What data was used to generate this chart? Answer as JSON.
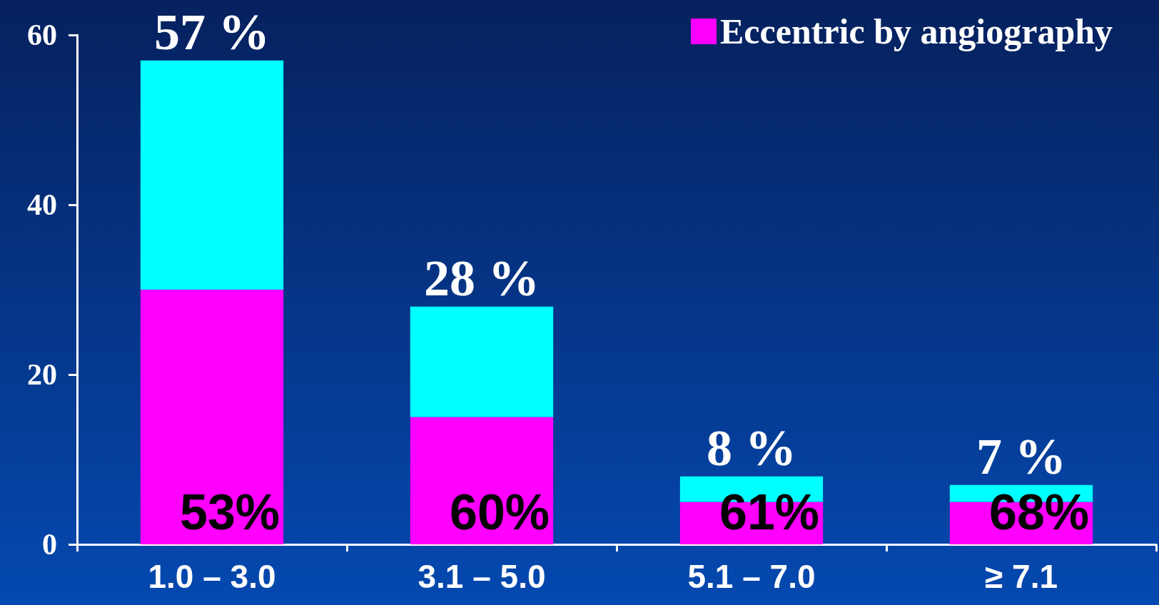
{
  "chart_data": {
    "type": "bar",
    "stacked": true,
    "categories": [
      "1.0 – 3.0",
      "3.1 – 5.0",
      "5.1 – 7.0",
      "≥ 7.1"
    ],
    "series": [
      {
        "name": "Eccentric by angiography",
        "color": "#ff00ff",
        "values": [
          30,
          15,
          5,
          5
        ]
      },
      {
        "color": "#00ffff",
        "values": [
          27,
          13,
          3,
          2
        ]
      }
    ],
    "totals": [
      "57 %",
      "28 %",
      "8 %",
      "7 %"
    ],
    "annotations": [
      {
        "text": "53%",
        "x": "1.0 – 3.0",
        "y": 0
      },
      {
        "text": "60%",
        "x": "3.1 – 5.0",
        "y": 0
      },
      {
        "text": "61%",
        "x": "5.1 – 7.0",
        "y": 0
      },
      {
        "text": "68%",
        "x": "≥ 7.1",
        "y": 0
      }
    ],
    "ylim": [
      0,
      60
    ],
    "yticks": [
      0,
      20,
      40,
      60
    ],
    "grid": false,
    "legend": "top right"
  }
}
